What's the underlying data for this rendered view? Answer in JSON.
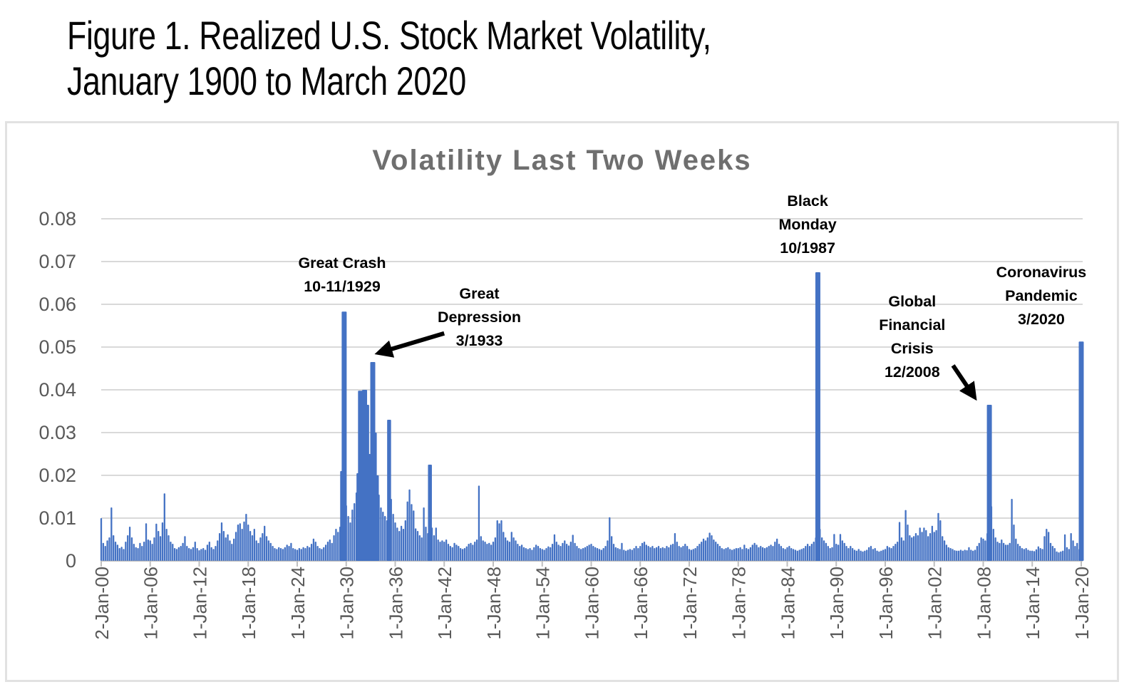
{
  "figure_title": {
    "line1": "Figure 1. Realized U.S. Stock Market Volatility,",
    "line2": "January 1900 to March 2020"
  },
  "chart_data": {
    "type": "bar",
    "title": "Volatility Last Two Weeks",
    "x_start_year": 1900,
    "x_step_years": 0.25,
    "x_tick_interval_years": 6,
    "x_tick_labels": [
      "2-Jan-00",
      "1-Jan-06",
      "1-Jan-12",
      "1-Jan-18",
      "1-Jan-24",
      "1-Jan-30",
      "1-Jan-36",
      "1-Jan-42",
      "1-Jan-48",
      "1-Jan-54",
      "1-Jan-60",
      "1-Jan-66",
      "1-Jan-72",
      "1-Jan-78",
      "1-Jan-84",
      "1-Jan-90",
      "1-Jan-96",
      "1-Jan-02",
      "1-Jan-08",
      "1-Jan-14",
      "1-Jan-20"
    ],
    "y_tick_labels": [
      "0",
      "0.01",
      "0.02",
      "0.03",
      "0.04",
      "0.05",
      "0.06",
      "0.07",
      "0.08"
    ],
    "ylim": [
      0,
      0.08
    ],
    "grid": true,
    "legend": "none",
    "bar_color": "#4472C4",
    "axis_text_color": "#595959",
    "gridline_color": "#D9D9D9",
    "axis_line_color": "#BFBFBF",
    "title_color": "#6F6F6F",
    "annotation_color": "#000000",
    "values_scale": 0.0001,
    "values": [
      100,
      42,
      35,
      48,
      55,
      125,
      60,
      45,
      38,
      30,
      33,
      28,
      45,
      60,
      80,
      55,
      40,
      32,
      30,
      42,
      35,
      45,
      88,
      50,
      48,
      40,
      55,
      87,
      70,
      58,
      90,
      158,
      75,
      60,
      45,
      40,
      30,
      28,
      32,
      35,
      42,
      58,
      35,
      30,
      28,
      32,
      45,
      30,
      25,
      28,
      30,
      26,
      38,
      45,
      32,
      28,
      35,
      48,
      65,
      90,
      70,
      55,
      62,
      48,
      40,
      52,
      68,
      85,
      88,
      75,
      92,
      110,
      85,
      70,
      60,
      75,
      48,
      42,
      55,
      65,
      82,
      58,
      48,
      42,
      35,
      30,
      28,
      32,
      30,
      28,
      32,
      38,
      35,
      42,
      30,
      28,
      26,
      30,
      28,
      32,
      30,
      35,
      32,
      40,
      52,
      45,
      35,
      30,
      28,
      32,
      38,
      45,
      50,
      42,
      60,
      75,
      68,
      80,
      210,
      583,
      130,
      105,
      90,
      120,
      135,
      160,
      205,
      398,
      380,
      400,
      365,
      250,
      180,
      465,
      300,
      200,
      155,
      125,
      115,
      105,
      95,
      330,
      145,
      110,
      90,
      78,
      70,
      82,
      75,
      95,
      139,
      167,
      133,
      118,
      76,
      70,
      60,
      55,
      125,
      80,
      65,
      225,
      78,
      60,
      78,
      50,
      45,
      48,
      45,
      50,
      40,
      35,
      32,
      42,
      38,
      35,
      30,
      28,
      30,
      34,
      40,
      42,
      38,
      45,
      50,
      176,
      58,
      48,
      45,
      40,
      42,
      38,
      45,
      55,
      95,
      88,
      95,
      68,
      55,
      48,
      45,
      68,
      55,
      48,
      40,
      35,
      38,
      32,
      30,
      28,
      30,
      26,
      32,
      38,
      35,
      30,
      28,
      26,
      30,
      34,
      32,
      40,
      62,
      45,
      38,
      35,
      42,
      48,
      40,
      36,
      45,
      61,
      42,
      35,
      30,
      28,
      30,
      32,
      35,
      38,
      40,
      35,
      32,
      30,
      28,
      26,
      30,
      35,
      48,
      102,
      58,
      40,
      32,
      30,
      28,
      42,
      26,
      24,
      26,
      28,
      26,
      30,
      35,
      30,
      35,
      42,
      45,
      38,
      35,
      32,
      35,
      30,
      32,
      35,
      30,
      32,
      30,
      35,
      32,
      38,
      40,
      65,
      45,
      35,
      32,
      35,
      40,
      35,
      28,
      26,
      28,
      30,
      35,
      40,
      45,
      52,
      48,
      55,
      66,
      60,
      50,
      45,
      40,
      35,
      30,
      28,
      30,
      32,
      28,
      26,
      28,
      30,
      30,
      32,
      28,
      38,
      30,
      28,
      32,
      38,
      42,
      38,
      32,
      35,
      32,
      30,
      32,
      35,
      38,
      35,
      45,
      52,
      40,
      35,
      30,
      28,
      32,
      35,
      30,
      28,
      26,
      24,
      26,
      28,
      30,
      35,
      40,
      35,
      40,
      45,
      55,
      675,
      75,
      55,
      48,
      42,
      35,
      30,
      32,
      63,
      40,
      38,
      63,
      48,
      42,
      35,
      30,
      35,
      30,
      26,
      24,
      28,
      24,
      22,
      24,
      26,
      32,
      35,
      28,
      30,
      24,
      22,
      24,
      26,
      28,
      35,
      32,
      30,
      35,
      40,
      45,
      91,
      55,
      48,
      119,
      85,
      60,
      55,
      58,
      65,
      60,
      78,
      68,
      78,
      72,
      58,
      65,
      82,
      68,
      72,
      112,
      95,
      58,
      48,
      38,
      32,
      30,
      28,
      25,
      24,
      24,
      26,
      24,
      26,
      25,
      32,
      26,
      24,
      26,
      35,
      42,
      55,
      52,
      48,
      65,
      365,
      128,
      75,
      55,
      45,
      42,
      50,
      42,
      38,
      38,
      42,
      145,
      85,
      52,
      40,
      35,
      30,
      28,
      30,
      26,
      24,
      24,
      23,
      27,
      34,
      30,
      28,
      58,
      75,
      68,
      42,
      35,
      30,
      22,
      20,
      22,
      24,
      62,
      32,
      28,
      65,
      48,
      35,
      42,
      28,
      513
    ],
    "annotations": [
      {
        "id": "great-crash",
        "lines": [
          "Great Crash",
          "10-11/1929"
        ],
        "anchor_year": 1929.5,
        "anchor_value": 0.0725
      },
      {
        "id": "great-depression",
        "lines": [
          "Great",
          "Depression",
          "3/1933"
        ],
        "anchor_year": 1946.3,
        "anchor_value": 0.0653
      },
      {
        "id": "black-monday",
        "lines": [
          "Black",
          "Monday",
          "10/1987"
        ],
        "anchor_year": 1986.5,
        "anchor_value": 0.087
      },
      {
        "id": "global-financial-crisis",
        "lines": [
          "Global",
          "Financial",
          "Crisis",
          "12/2008"
        ],
        "anchor_year": 1999.3,
        "anchor_value": 0.0635
      },
      {
        "id": "coronavirus-pandemic",
        "lines": [
          "Coronavirus",
          "Pandemic",
          "3/2020"
        ],
        "anchor_year": 2015.1,
        "anchor_value": 0.0703
      }
    ],
    "arrows": [
      {
        "id": "great-depression-arrow",
        "from_year": 1942.0,
        "from_value": 0.0532,
        "to_year": 1934.1,
        "to_value": 0.0487
      },
      {
        "id": "gfc-arrow",
        "from_year": 2004.3,
        "from_value": 0.0457,
        "to_year": 2006.85,
        "to_value": 0.0385
      }
    ]
  }
}
